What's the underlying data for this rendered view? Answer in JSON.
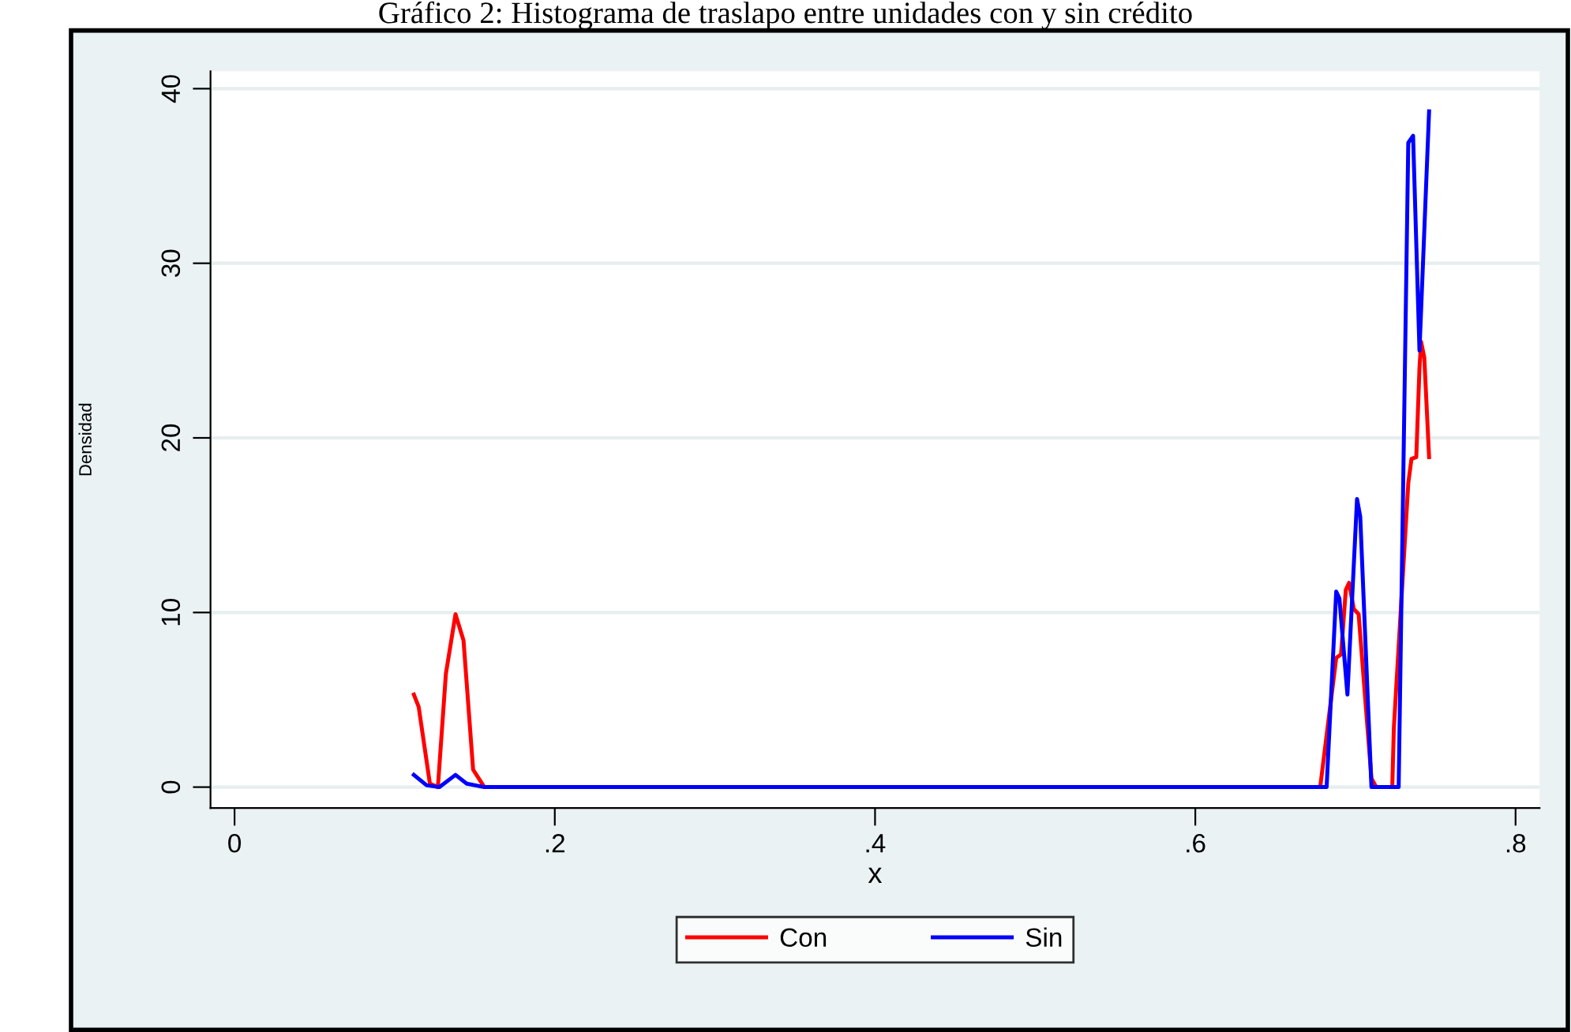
{
  "chart_data": {
    "type": "line",
    "title": "Gráfico 2: Histograma de traslapo entre unidades con y sin crédito",
    "xlabel": "x",
    "ylabel": "Densidad",
    "xlim": [
      -0.015,
      0.815
    ],
    "xticks": [
      0,
      {
        "value": 0.2,
        "label": ".2"
      },
      {
        "value": 0.4,
        "label": ".4"
      },
      {
        "value": 0.6,
        "label": ".6"
      },
      {
        "value": 0.8,
        "label": ".8"
      }
    ],
    "ylim": [
      -1.2,
      41
    ],
    "yticks": [
      0,
      10,
      20,
      30,
      40
    ],
    "grid": "y",
    "legend": "bottom",
    "series": [
      {
        "name": "Con",
        "color": "#ff0000",
        "x": [
          0.112,
          0.115,
          0.122,
          0.127,
          0.132,
          0.138,
          0.143,
          0.149,
          0.156,
          0.678,
          0.688,
          0.691,
          0.694,
          0.696,
          0.699,
          0.702,
          0.71,
          0.713,
          0.723,
          0.724,
          0.733,
          0.735,
          0.738,
          0.74,
          0.741,
          0.743,
          0.746
        ],
        "values": [
          5.3,
          4.6,
          0.2,
          0,
          6.5,
          9.9,
          8.4,
          1.0,
          0,
          0,
          7.4,
          7.6,
          11.3,
          11.7,
          10.2,
          9.9,
          0.5,
          0,
          0,
          3.4,
          17.4,
          18.8,
          18.9,
          24,
          25.5,
          24.6,
          18.9
        ]
      },
      {
        "name": "Sin",
        "color": "#0000ff",
        "x": [
          0.112,
          0.12,
          0.128,
          0.138,
          0.145,
          0.156,
          0.682,
          0.688,
          0.69,
          0.695,
          0.701,
          0.703,
          0.71,
          0.727,
          0.733,
          0.736,
          0.74,
          0.746
        ],
        "values": [
          0.7,
          0.1,
          0,
          0.7,
          0.2,
          0,
          0,
          11.2,
          10.8,
          5.3,
          16.5,
          15.5,
          0,
          0,
          36.9,
          37.3,
          25,
          38.7
        ]
      }
    ]
  }
}
